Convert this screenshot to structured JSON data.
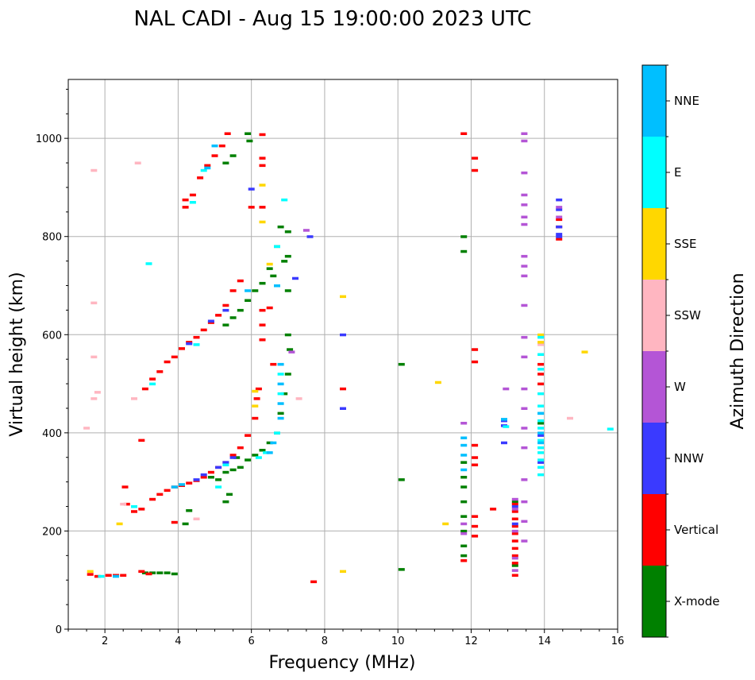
{
  "chart_data": {
    "type": "scatter",
    "title": "NAL CADI - Aug 15 19:00:00 2023 UTC",
    "xlabel": "Frequency (MHz)",
    "ylabel": "Virtual height (km)",
    "xlim": [
      1,
      16
    ],
    "ylim": [
      0,
      1120
    ],
    "xticks": [
      2,
      4,
      6,
      8,
      10,
      12,
      14,
      16
    ],
    "yticks": [
      0,
      200,
      400,
      600,
      800,
      1000
    ],
    "grid": true,
    "colorbar": {
      "title": "Azimuth Direction",
      "categories": [
        {
          "name": "X-mode",
          "color": "#008000"
        },
        {
          "name": "Vertical",
          "color": "#ff0000"
        },
        {
          "name": "NNW",
          "color": "#3a3aff"
        },
        {
          "name": "W",
          "color": "#b455d6"
        },
        {
          "name": "SSW",
          "color": "#ffb6c1"
        },
        {
          "name": "SSE",
          "color": "#ffd700"
        },
        {
          "name": "E",
          "color": "#00ffff"
        },
        {
          "name": "NNE",
          "color": "#00bfff"
        }
      ]
    },
    "series": [
      {
        "name": "X-mode",
        "points": [
          [
            3.1,
            115
          ],
          [
            3.3,
            115
          ],
          [
            3.5,
            115
          ],
          [
            3.7,
            115
          ],
          [
            3.9,
            113
          ],
          [
            4.2,
            215
          ],
          [
            4.3,
            242
          ],
          [
            4.9,
            310
          ],
          [
            5.1,
            305
          ],
          [
            5.3,
            320
          ],
          [
            5.5,
            325
          ],
          [
            5.7,
            330
          ],
          [
            5.9,
            345
          ],
          [
            6.1,
            355
          ],
          [
            6.3,
            365
          ],
          [
            6.5,
            380
          ],
          [
            6.7,
            400
          ],
          [
            6.8,
            440
          ],
          [
            6.9,
            480
          ],
          [
            7.0,
            520
          ],
          [
            7.05,
            570
          ],
          [
            7.0,
            600
          ],
          [
            5.3,
            260
          ],
          [
            5.4,
            275
          ],
          [
            5.6,
            350
          ],
          [
            5.3,
            620
          ],
          [
            5.5,
            635
          ],
          [
            5.7,
            650
          ],
          [
            5.9,
            670
          ],
          [
            6.1,
            690
          ],
          [
            6.3,
            705
          ],
          [
            6.5,
            735
          ],
          [
            6.7,
            780
          ],
          [
            6.8,
            820
          ],
          [
            7.0,
            810
          ],
          [
            7.0,
            760
          ],
          [
            7.0,
            690
          ],
          [
            6.6,
            720
          ],
          [
            6.9,
            750
          ],
          [
            5.3,
            950
          ],
          [
            5.5,
            965
          ],
          [
            5.9,
            1010
          ],
          [
            5.95,
            995
          ],
          [
            10.1,
            540
          ],
          [
            10.1,
            305
          ],
          [
            10.1,
            122
          ],
          [
            11.8,
            800
          ],
          [
            11.8,
            770
          ],
          [
            11.8,
            150
          ],
          [
            11.8,
            170
          ],
          [
            11.8,
            200
          ],
          [
            11.8,
            230
          ],
          [
            11.8,
            260
          ],
          [
            11.8,
            290
          ],
          [
            11.8,
            310
          ],
          [
            11.8,
            340
          ],
          [
            13.2,
            260
          ],
          [
            13.2,
            130
          ],
          [
            13.9,
            420
          ]
        ]
      },
      {
        "name": "Vertical",
        "points": [
          [
            1.6,
            112
          ],
          [
            1.8,
            108
          ],
          [
            2.1,
            110
          ],
          [
            2.3,
            110
          ],
          [
            2.5,
            110
          ],
          [
            3.0,
            118
          ],
          [
            3.2,
            113
          ],
          [
            2.6,
            255
          ],
          [
            2.8,
            240
          ],
          [
            3.0,
            245
          ],
          [
            3.3,
            265
          ],
          [
            3.5,
            275
          ],
          [
            3.7,
            283
          ],
          [
            3.9,
            290
          ],
          [
            4.1,
            293
          ],
          [
            4.3,
            298
          ],
          [
            4.5,
            303
          ],
          [
            4.7,
            310
          ],
          [
            4.9,
            320
          ],
          [
            5.1,
            330
          ],
          [
            5.3,
            340
          ],
          [
            5.5,
            355
          ],
          [
            5.7,
            370
          ],
          [
            5.9,
            395
          ],
          [
            6.1,
            430
          ],
          [
            6.15,
            470
          ],
          [
            6.2,
            490
          ],
          [
            2.55,
            290
          ],
          [
            3.0,
            385
          ],
          [
            3.9,
            218
          ],
          [
            3.1,
            490
          ],
          [
            3.3,
            510
          ],
          [
            3.5,
            525
          ],
          [
            3.7,
            545
          ],
          [
            3.9,
            555
          ],
          [
            4.1,
            572
          ],
          [
            4.3,
            585
          ],
          [
            4.5,
            595
          ],
          [
            4.7,
            610
          ],
          [
            4.9,
            625
          ],
          [
            5.1,
            640
          ],
          [
            5.3,
            660
          ],
          [
            5.5,
            690
          ],
          [
            5.7,
            710
          ],
          [
            6.3,
            590
          ],
          [
            6.3,
            620
          ],
          [
            6.5,
            655
          ],
          [
            6.6,
            540
          ],
          [
            4.2,
            860
          ],
          [
            4.2,
            875
          ],
          [
            4.4,
            885
          ],
          [
            4.6,
            920
          ],
          [
            4.8,
            945
          ],
          [
            5.0,
            965
          ],
          [
            5.2,
            985
          ],
          [
            5.35,
            1010
          ],
          [
            6.3,
            1008
          ],
          [
            6.3,
            960
          ],
          [
            6.3,
            945
          ],
          [
            6.0,
            860
          ],
          [
            6.3,
            860
          ],
          [
            6.3,
            650
          ],
          [
            7.7,
            97
          ],
          [
            8.5,
            490
          ],
          [
            11.8,
            1010
          ],
          [
            12.1,
            960
          ],
          [
            12.1,
            935
          ],
          [
            12.1,
            570
          ],
          [
            12.1,
            545
          ],
          [
            12.1,
            375
          ],
          [
            12.1,
            350
          ],
          [
            12.1,
            335
          ],
          [
            12.1,
            230
          ],
          [
            12.1,
            210
          ],
          [
            12.1,
            190
          ],
          [
            11.8,
            140
          ],
          [
            12.6,
            245
          ],
          [
            13.2,
            255
          ],
          [
            13.2,
            240
          ],
          [
            13.2,
            225
          ],
          [
            13.2,
            210
          ],
          [
            13.2,
            195
          ],
          [
            13.2,
            180
          ],
          [
            13.2,
            165
          ],
          [
            13.2,
            150
          ],
          [
            13.2,
            135
          ],
          [
            13.2,
            110
          ],
          [
            13.9,
            540
          ],
          [
            13.9,
            520
          ],
          [
            13.9,
            500
          ],
          [
            14.4,
            820
          ],
          [
            14.4,
            835
          ],
          [
            14.4,
            795
          ]
        ]
      },
      {
        "name": "NNW",
        "points": [
          [
            6.0,
            897
          ],
          [
            7.6,
            800
          ],
          [
            7.2,
            715
          ],
          [
            8.5,
            450
          ],
          [
            8.5,
            600
          ],
          [
            12.9,
            425
          ],
          [
            12.9,
            415
          ],
          [
            12.9,
            380
          ],
          [
            13.2,
            215
          ],
          [
            13.2,
            250
          ],
          [
            13.9,
            395
          ],
          [
            13.9,
            340
          ],
          [
            14.4,
            875
          ],
          [
            14.4,
            855
          ],
          [
            14.4,
            820
          ],
          [
            14.4,
            805
          ],
          [
            14.4,
            800
          ],
          [
            4.5,
            305
          ],
          [
            4.7,
            315
          ],
          [
            5.1,
            330
          ],
          [
            5.3,
            340
          ],
          [
            5.5,
            350
          ],
          [
            4.3,
            582
          ],
          [
            4.9,
            628
          ],
          [
            5.3,
            650
          ]
        ]
      },
      {
        "name": "W",
        "points": [
          [
            13.45,
            1010
          ],
          [
            13.45,
            995
          ],
          [
            13.45,
            930
          ],
          [
            13.45,
            885
          ],
          [
            13.45,
            865
          ],
          [
            13.45,
            840
          ],
          [
            13.45,
            825
          ],
          [
            13.45,
            760
          ],
          [
            13.45,
            740
          ],
          [
            13.45,
            720
          ],
          [
            13.45,
            660
          ],
          [
            13.45,
            595
          ],
          [
            13.45,
            555
          ],
          [
            13.45,
            490
          ],
          [
            13.45,
            450
          ],
          [
            13.45,
            410
          ],
          [
            13.45,
            370
          ],
          [
            13.45,
            305
          ],
          [
            13.45,
            260
          ],
          [
            13.45,
            220
          ],
          [
            13.45,
            180
          ],
          [
            12.95,
            490
          ],
          [
            13.2,
            265
          ],
          [
            13.2,
            245
          ],
          [
            13.2,
            200
          ],
          [
            13.2,
            145
          ],
          [
            13.2,
            120
          ],
          [
            11.8,
            420
          ],
          [
            11.8,
            215
          ],
          [
            11.8,
            195
          ],
          [
            14.4,
            860
          ],
          [
            14.4,
            840
          ],
          [
            7.1,
            565
          ],
          [
            7.5,
            813
          ]
        ]
      },
      {
        "name": "SSW",
        "points": [
          [
            1.7,
            935
          ],
          [
            1.7,
            665
          ],
          [
            1.7,
            555
          ],
          [
            1.8,
            483
          ],
          [
            1.5,
            410
          ],
          [
            2.9,
            950
          ],
          [
            2.8,
            470
          ],
          [
            2.5,
            255
          ],
          [
            4.5,
            225
          ],
          [
            7.3,
            470
          ],
          [
            13.9,
            580
          ],
          [
            14.7,
            430
          ],
          [
            1.7,
            470
          ]
        ]
      },
      {
        "name": "SSE",
        "points": [
          [
            8.5,
            678
          ],
          [
            8.5,
            118
          ],
          [
            11.1,
            503
          ],
          [
            11.3,
            215
          ],
          [
            15.1,
            565
          ],
          [
            13.9,
            600
          ],
          [
            13.9,
            585
          ],
          [
            6.3,
            905
          ],
          [
            6.3,
            830
          ],
          [
            6.1,
            485
          ],
          [
            6.1,
            455
          ],
          [
            2.4,
            215
          ],
          [
            1.6,
            118
          ],
          [
            6.5,
            744
          ]
        ]
      },
      {
        "name": "E",
        "points": [
          [
            13.9,
            595
          ],
          [
            13.9,
            560
          ],
          [
            13.9,
            530
          ],
          [
            13.9,
            480
          ],
          [
            13.9,
            455
          ],
          [
            13.9,
            440
          ],
          [
            13.9,
            425
          ],
          [
            13.9,
            410
          ],
          [
            13.9,
            385
          ],
          [
            13.9,
            370
          ],
          [
            13.9,
            360
          ],
          [
            13.9,
            345
          ],
          [
            13.9,
            330
          ],
          [
            13.9,
            315
          ],
          [
            12.95,
            413
          ],
          [
            15.8,
            408
          ],
          [
            6.9,
            875
          ],
          [
            6.7,
            780
          ],
          [
            6.8,
            520
          ],
          [
            6.8,
            480
          ],
          [
            6.7,
            400
          ],
          [
            6.4,
            360
          ],
          [
            6.2,
            350
          ],
          [
            5.1,
            290
          ],
          [
            5.3,
            335
          ],
          [
            4.4,
            870
          ],
          [
            4.7,
            935
          ],
          [
            3.2,
            745
          ],
          [
            2.8,
            250
          ],
          [
            1.9,
            108
          ],
          [
            4.5,
            580
          ],
          [
            3.3,
            500
          ]
        ]
      },
      {
        "name": "NNE",
        "points": [
          [
            5.0,
            985
          ],
          [
            4.8,
            940
          ],
          [
            6.8,
            540
          ],
          [
            6.8,
            500
          ],
          [
            6.8,
            460
          ],
          [
            6.8,
            430
          ],
          [
            6.6,
            380
          ],
          [
            6.5,
            360
          ],
          [
            11.8,
            390
          ],
          [
            11.8,
            375
          ],
          [
            11.8,
            355
          ],
          [
            11.8,
            325
          ],
          [
            12.9,
            428
          ],
          [
            13.9,
            440
          ],
          [
            13.9,
            400
          ],
          [
            13.9,
            380
          ],
          [
            3.9,
            290
          ],
          [
            4.1,
            295
          ],
          [
            5.9,
            690
          ],
          [
            6.7,
            700
          ],
          [
            2.3,
            108
          ]
        ]
      }
    ]
  }
}
